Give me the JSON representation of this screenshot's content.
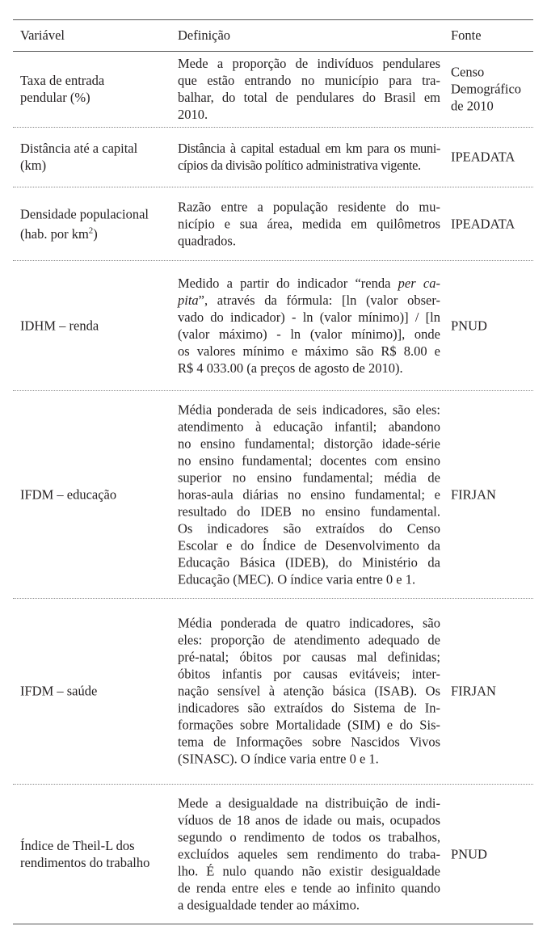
{
  "header": {
    "col1": "Variável",
    "col2": "Definição",
    "col3": "Fonte"
  },
  "rows": [
    {
      "variable": [
        "Taxa de entrada",
        "pendular (%)"
      ],
      "definition": [
        [
          {
            "t": "Mede a proporção de indivíduos pendulares"
          }
        ],
        [
          {
            "t": "que estão entrando no município para tra-"
          }
        ],
        [
          {
            "t": "balhar, do total de pendulares do Brasil em"
          }
        ],
        [
          {
            "t": "2010."
          }
        ]
      ],
      "source": [
        "Censo",
        "Demográfico",
        "de 2010"
      ]
    },
    {
      "variable": [
        "Distância até a capital",
        "(km)"
      ],
      "definition": [
        [
          {
            "t": "Distância à capital estadual em km para os muni-"
          }
        ],
        [
          {
            "t": "cípios da divisão político administrativa vigente."
          }
        ]
      ],
      "condensed": true,
      "source": [
        "IPEADATA"
      ]
    },
    {
      "variable": [
        "Densidade populacional",
        "(hab. por km"
      ],
      "variable_sup": "2",
      "variable_tail": ")",
      "definition": [
        [
          {
            "t": "Razão entre a população residente do mu-"
          }
        ],
        [
          {
            "t": "nicípio e sua área, medida em quilômetros"
          }
        ],
        [
          {
            "t": "quadrados."
          }
        ]
      ],
      "source": [
        "IPEADATA"
      ]
    },
    {
      "variable": [
        "IDHM – renda"
      ],
      "definition": [
        [
          {
            "t": "Medido a partir do indicador “renda "
          },
          {
            "t": "per ca-",
            "i": true
          }
        ],
        [
          {
            "t": "pita",
            "i": true
          },
          {
            "t": "”, através da fórmula: [ln (valor obser-"
          }
        ],
        [
          {
            "t": "vado do indicador) - ln (valor mínimo)] / [ln"
          }
        ],
        [
          {
            "t": "(valor máximo) - ln (valor mínimo)], onde"
          }
        ],
        [
          {
            "t": "os valores mínimo e máximo são R$ 8.00 e"
          }
        ],
        [
          {
            "t": "R$ 4 033.00 (a preços de agosto de 2010)."
          }
        ]
      ],
      "source": [
        "PNUD"
      ]
    },
    {
      "variable": [
        "IFDM – educação"
      ],
      "definition": [
        [
          {
            "t": "Média ponderada de seis indicadores, são eles:"
          }
        ],
        [
          {
            "t": "atendimento à educação infantil; abandono"
          }
        ],
        [
          {
            "t": "no ensino fundamental; distorção idade-série"
          }
        ],
        [
          {
            "t": "no ensino fundamental; docentes com ensino"
          }
        ],
        [
          {
            "t": "superior no ensino fundamental; média de"
          }
        ],
        [
          {
            "t": "horas-aula diárias no ensino fundamental; e"
          }
        ],
        [
          {
            "t": "resultado do IDEB no ensino fundamental."
          }
        ],
        [
          {
            "t": "Os indicadores são extraídos do Censo"
          }
        ],
        [
          {
            "t": "Escolar e do Índice de Desenvolvimento da"
          }
        ],
        [
          {
            "t": "Educação Básica (IDEB), do Ministério da"
          }
        ],
        [
          {
            "t": "Educação (MEC). O índice varia entre 0 e 1."
          }
        ]
      ],
      "source": [
        "FIRJAN"
      ]
    },
    {
      "variable": [
        "IFDM – saúde"
      ],
      "definition": [
        [
          {
            "t": "Média ponderada de quatro indicadores, são"
          }
        ],
        [
          {
            "t": "eles: proporção de atendimento adequado de"
          }
        ],
        [
          {
            "t": "pré-natal; óbitos por causas mal definidas;"
          }
        ],
        [
          {
            "t": "óbitos infantis por causas evitáveis; inter-"
          }
        ],
        [
          {
            "t": "nação sensível à atenção básica (ISAB). Os"
          }
        ],
        [
          {
            "t": "indicadores são extraídos do Sistema de In-"
          }
        ],
        [
          {
            "t": "formações sobre Mortalidade (SIM) e do Sis-"
          }
        ],
        [
          {
            "t": "tema de Informações sobre Nascidos Vivos"
          }
        ],
        [
          {
            "t": "(SINASC). O índice varia entre 0 e 1."
          }
        ]
      ],
      "source": [
        "FIRJAN"
      ]
    },
    {
      "variable": [
        "Índice de Theil-L dos",
        "rendimentos do trabalho"
      ],
      "definition": [
        [
          {
            "t": "Mede a desigualdade na distribuição de indi-"
          }
        ],
        [
          {
            "t": "víduos de 18 anos de idade ou mais, ocupados"
          }
        ],
        [
          {
            "t": "segundo o rendimento de todos os trabalhos,"
          }
        ],
        [
          {
            "t": "excluídos aqueles sem rendimento do traba-"
          }
        ],
        [
          {
            "t": "lho. É nulo quando não existir desigualdade"
          }
        ],
        [
          {
            "t": "de renda entre eles e tende ao infinito quando"
          }
        ],
        [
          {
            "t": "a desigualdade tender ao máximo."
          }
        ]
      ],
      "source": [
        "PNUD"
      ]
    }
  ]
}
